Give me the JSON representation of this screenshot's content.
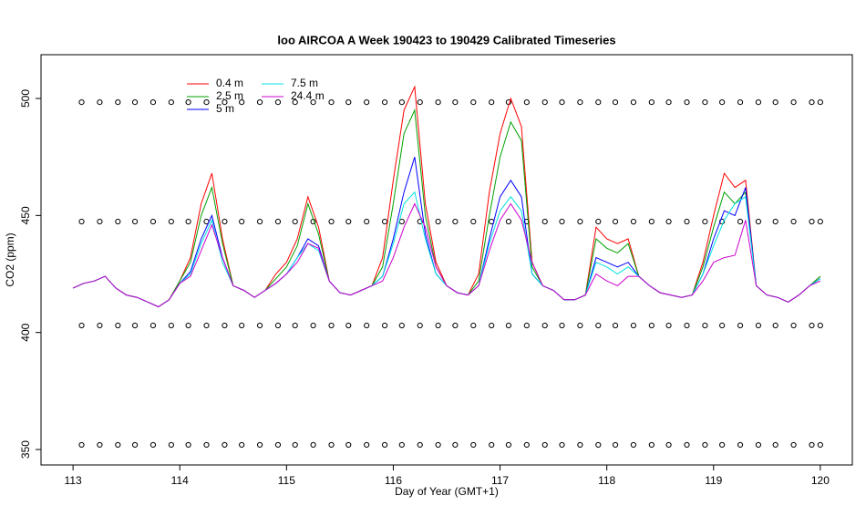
{
  "chart_data": {
    "type": "line",
    "title": "loo AIRCOA A  Week 190423 to 190429  Calibrated Timeseries",
    "x_label": "Day of Year (GMT+1)",
    "y_label": "CO2 (ppm)",
    "xlim": [
      112.7,
      120.3
    ],
    "ylim": [
      343.4,
      518.7
    ],
    "xticks": [
      113,
      114,
      115,
      116,
      117,
      118,
      119,
      120
    ],
    "yticks": [
      350,
      400,
      450,
      500
    ],
    "x": [
      113.0,
      113.1,
      113.2,
      113.3,
      113.4,
      113.5,
      113.6,
      113.7,
      113.8,
      113.9,
      114.0,
      114.1,
      114.2,
      114.3,
      114.4,
      114.5,
      114.6,
      114.7,
      114.8,
      114.9,
      115.0,
      115.1,
      115.2,
      115.3,
      115.4,
      115.5,
      115.6,
      115.7,
      115.8,
      115.9,
      116.0,
      116.1,
      116.2,
      116.3,
      116.4,
      116.5,
      116.6,
      116.7,
      116.8,
      116.9,
      117.0,
      117.1,
      117.2,
      117.3,
      117.4,
      117.5,
      117.6,
      117.7,
      117.8,
      117.9,
      118.0,
      118.1,
      118.2,
      118.3,
      118.4,
      118.5,
      118.6,
      118.7,
      118.8,
      118.9,
      119.0,
      119.1,
      119.2,
      119.3,
      119.4,
      119.5,
      119.6,
      119.7,
      119.8,
      119.9,
      120.0
    ],
    "series": [
      {
        "name": "0.4 m",
        "color": "#ff0000",
        "values": [
          419,
          421,
          422,
          424,
          419,
          416,
          415,
          413,
          411,
          414,
          422,
          432,
          455,
          468,
          440,
          420,
          418,
          415,
          418,
          425,
          430,
          440,
          458,
          445,
          422,
          417,
          416,
          418,
          420,
          432,
          465,
          495,
          505,
          455,
          430,
          420,
          417,
          416,
          425,
          460,
          485,
          500,
          488,
          430,
          420,
          418,
          414,
          414,
          416,
          445,
          440,
          438,
          440,
          424,
          420,
          417,
          416,
          415,
          416,
          430,
          450,
          468,
          462,
          465,
          420,
          416,
          415,
          413,
          416,
          420,
          424
        ]
      },
      {
        "name": "2.5 m",
        "color": "#00a000",
        "values": [
          419,
          421,
          422,
          424,
          419,
          416,
          415,
          413,
          411,
          414,
          422,
          430,
          450,
          462,
          438,
          420,
          418,
          415,
          418,
          423,
          428,
          437,
          455,
          442,
          422,
          417,
          416,
          418,
          420,
          428,
          455,
          485,
          495,
          450,
          428,
          420,
          417,
          416,
          422,
          450,
          475,
          490,
          482,
          428,
          420,
          418,
          414,
          414,
          416,
          440,
          436,
          434,
          438,
          424,
          420,
          417,
          416,
          415,
          416,
          428,
          445,
          460,
          455,
          460,
          420,
          416,
          415,
          413,
          416,
          420,
          424
        ]
      },
      {
        "name": "5 m",
        "color": "#0000ff",
        "values": [
          419,
          421,
          422,
          424,
          419,
          416,
          415,
          413,
          411,
          414,
          421,
          426,
          440,
          450,
          432,
          420,
          418,
          415,
          418,
          421,
          425,
          432,
          440,
          437,
          422,
          417,
          416,
          418,
          420,
          424,
          440,
          460,
          475,
          442,
          425,
          420,
          417,
          416,
          420,
          440,
          458,
          465,
          458,
          425,
          420,
          418,
          414,
          414,
          416,
          432,
          430,
          428,
          430,
          424,
          420,
          417,
          416,
          415,
          416,
          425,
          440,
          452,
          450,
          462,
          420,
          416,
          415,
          413,
          416,
          420,
          423
        ]
      },
      {
        "name": "7.5 m",
        "color": "#00e0e0",
        "values": [
          419,
          421,
          422,
          424,
          419,
          416,
          415,
          413,
          411,
          414,
          421,
          425,
          438,
          448,
          430,
          420,
          418,
          415,
          418,
          421,
          425,
          432,
          438,
          435,
          422,
          417,
          416,
          418,
          420,
          424,
          438,
          455,
          460,
          440,
          425,
          420,
          417,
          416,
          420,
          438,
          452,
          458,
          452,
          425,
          420,
          418,
          414,
          414,
          416,
          430,
          428,
          425,
          428,
          424,
          420,
          417,
          416,
          415,
          416,
          425,
          437,
          448,
          455,
          458,
          420,
          416,
          415,
          413,
          416,
          420,
          423
        ]
      },
      {
        "name": "24.4 m",
        "color": "#cc00cc",
        "values": [
          419,
          421,
          422,
          424,
          419,
          416,
          415,
          413,
          411,
          414,
          421,
          424,
          435,
          446,
          432,
          420,
          418,
          415,
          418,
          421,
          425,
          430,
          438,
          436,
          422,
          417,
          416,
          418,
          420,
          422,
          432,
          445,
          455,
          445,
          428,
          420,
          417,
          416,
          420,
          435,
          448,
          455,
          448,
          430,
          420,
          418,
          414,
          414,
          416,
          425,
          422,
          420,
          424,
          424,
          420,
          417,
          416,
          415,
          416,
          422,
          430,
          432,
          433,
          448,
          420,
          416,
          415,
          413,
          416,
          420,
          422
        ]
      }
    ],
    "markers": {
      "color": "#000000",
      "x": [
        113.08,
        113.25,
        113.42,
        113.58,
        113.75,
        113.92,
        114.08,
        114.25,
        114.42,
        114.58,
        114.75,
        114.92,
        115.08,
        115.25,
        115.42,
        115.58,
        115.75,
        115.92,
        116.08,
        116.25,
        116.42,
        116.58,
        116.75,
        116.92,
        117.08,
        117.25,
        117.42,
        117.58,
        117.75,
        117.92,
        118.08,
        118.25,
        118.42,
        118.58,
        118.75,
        118.92,
        119.08,
        119.25,
        119.42,
        119.58,
        119.75,
        119.92,
        120.0
      ],
      "levels": [
        498.4,
        447.4,
        403.0,
        352.0
      ]
    }
  }
}
